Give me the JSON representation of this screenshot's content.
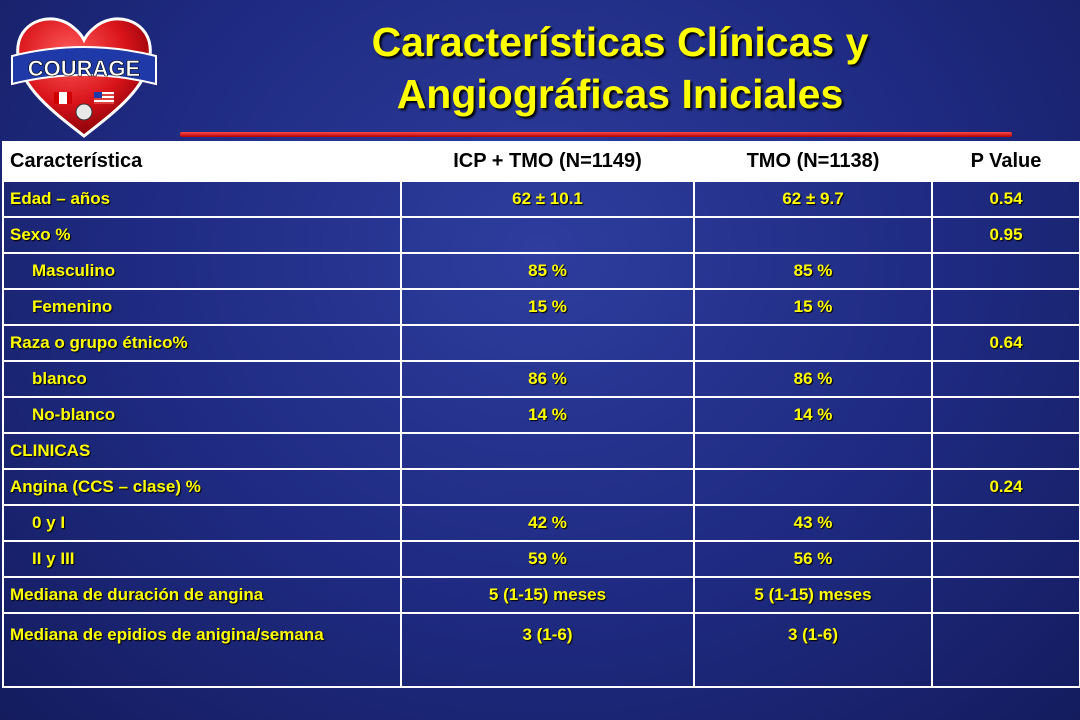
{
  "logo": {
    "text": "COURAGE"
  },
  "title_line1": "Características Clínicas y",
  "title_line2": "Angiográficas Iniciales",
  "table": {
    "headers": [
      "Característica",
      "ICP + TMO (N=1149)",
      "TMO (N=1138)",
      "P Value"
    ],
    "rows": [
      [
        "Edad – años",
        "62 ± 10.1",
        "62 ± 9.7",
        "0.54"
      ],
      [
        "Sexo %",
        "",
        "",
        "0.95"
      ],
      [
        "Masculino",
        "85 %",
        "85 %",
        ""
      ],
      [
        "Femenino",
        "15 %",
        "15 %",
        ""
      ],
      [
        "Raza o grupo étnico%",
        "",
        "",
        "0.64"
      ],
      [
        "blanco",
        "86 %",
        "86 %",
        ""
      ],
      [
        "No-blanco",
        "14 %",
        "14 %",
        ""
      ],
      [
        "CLINICAS",
        "",
        "",
        ""
      ],
      [
        "Angina (CCS – clase) %",
        "",
        "",
        "0.24"
      ],
      [
        "0 y I",
        "42 %",
        "43 %",
        ""
      ],
      [
        "II y III",
        "59 %",
        "56 %",
        ""
      ],
      [
        "Mediana de duración de angina",
        "5 (1-15) meses",
        "5 (1-15) meses",
        ""
      ],
      [
        "Mediana de epidios de anigina/semana",
        "3 (1-6)",
        "3 (1-6)",
        ""
      ]
    ]
  },
  "colors": {
    "background": "#1e2a80",
    "title": "#ffff00",
    "cell_text": "#ffff00",
    "header_bg": "#ffffff",
    "rule": "#e00000"
  }
}
